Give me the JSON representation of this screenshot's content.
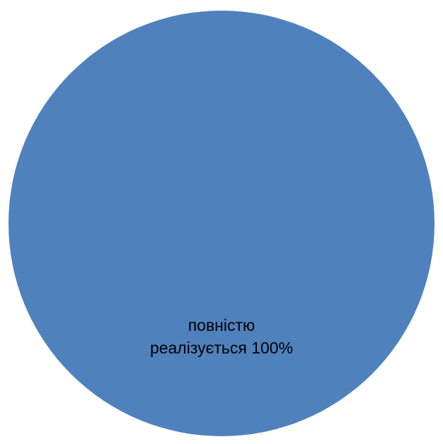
{
  "chart_data": {
    "type": "pie",
    "title": "",
    "slices": [
      {
        "label_lines": [
          "повністю",
          "реалізується 100%"
        ],
        "value": 100,
        "color": "#4f81bd"
      }
    ],
    "legend": "none"
  }
}
